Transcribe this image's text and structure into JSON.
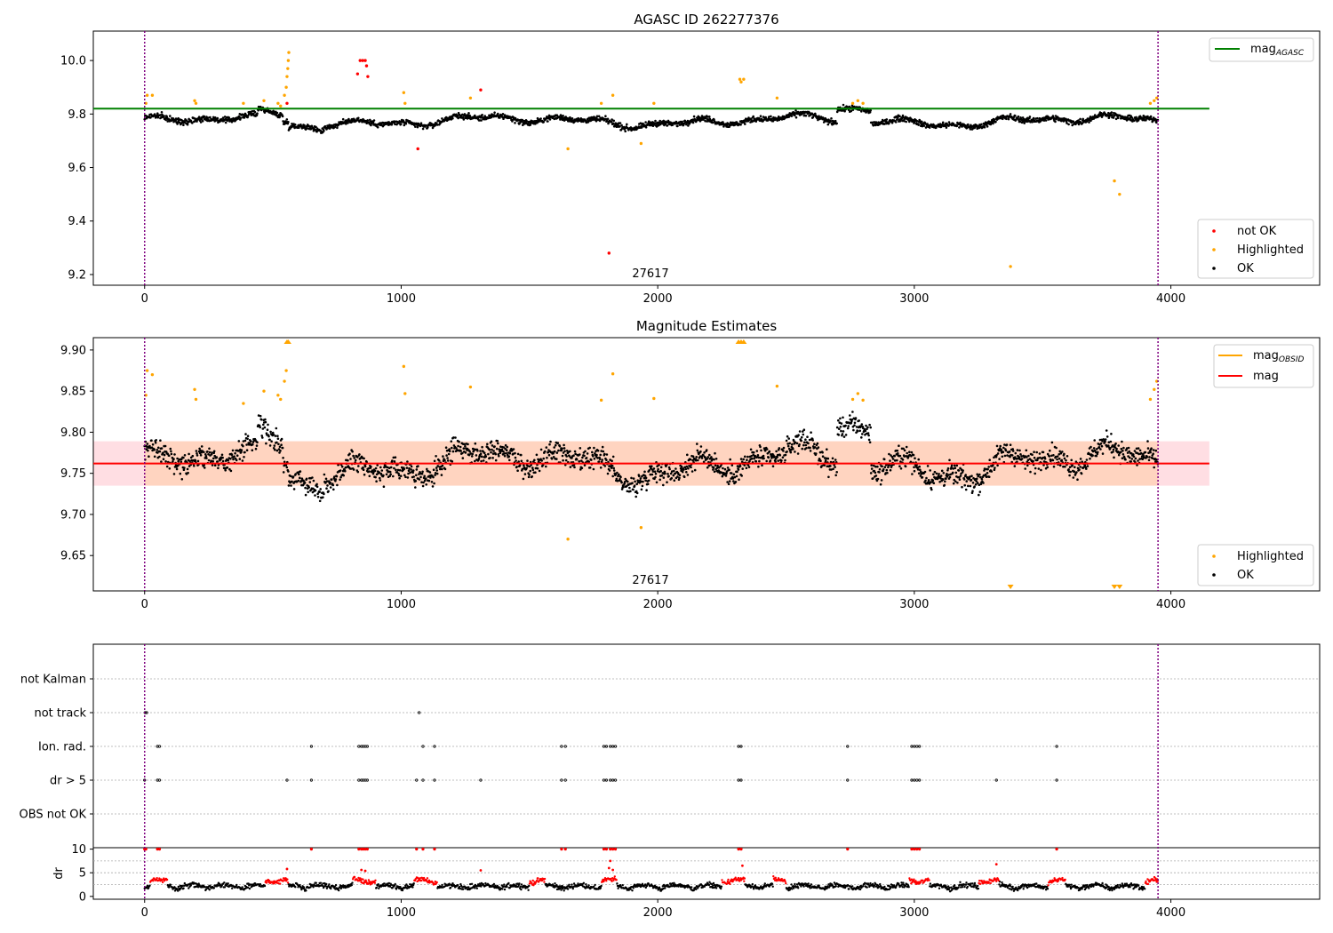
{
  "colors": {
    "ok": "#000000",
    "highlighted": "#ffa500",
    "not_ok": "#ff0000",
    "agasc": "#008000",
    "mag": "#ff0000",
    "obsid": "#ffa500",
    "vline": "#800080",
    "band_pink": "#ffb6c1",
    "band_orange": "#ffd0b0"
  },
  "chart_data": [
    {
      "type": "scatter",
      "title": "AGASC ID 262277376",
      "annotation": "27617",
      "xlim": [
        -200,
        4580
      ],
      "ylim": [
        9.16,
        10.11
      ],
      "xticks": [
        "0",
        "1000",
        "2000",
        "3000",
        "4000"
      ],
      "xtick_values": [
        0,
        1000,
        2000,
        3000,
        4000
      ],
      "yticks": [
        "9.2",
        "9.4",
        "9.6",
        "9.8",
        "10.0"
      ],
      "ytick_values": [
        9.2,
        9.4,
        9.6,
        9.8,
        10.0
      ],
      "vlines": [
        0,
        3950
      ],
      "hline": {
        "name": "mag",
        "subscript": "AGASC",
        "value": 9.82,
        "x": [
          -200,
          4150
        ]
      },
      "legend_top": {
        "name": "mag",
        "subscript": "AGASC"
      },
      "legend_bottom": [
        "not OK",
        "Highlighted",
        "OK"
      ],
      "highlighted_points": [
        [
          10,
          9.87
        ],
        [
          30,
          9.87
        ],
        [
          5,
          9.84
        ],
        [
          195,
          9.85
        ],
        [
          200,
          9.84
        ],
        [
          385,
          9.84
        ],
        [
          465,
          9.85
        ],
        [
          520,
          9.84
        ],
        [
          530,
          9.83
        ],
        [
          545,
          9.87
        ],
        [
          552,
          9.9
        ],
        [
          555,
          9.94
        ],
        [
          558,
          9.97
        ],
        [
          560,
          10.0
        ],
        [
          562,
          10.03
        ],
        [
          1010,
          9.88
        ],
        [
          1015,
          9.84
        ],
        [
          1270,
          9.86
        ],
        [
          1650,
          9.67
        ],
        [
          1780,
          9.84
        ],
        [
          1825,
          9.87
        ],
        [
          1935,
          9.69
        ],
        [
          1985,
          9.84
        ],
        [
          2320,
          9.93
        ],
        [
          2325,
          9.92
        ],
        [
          2335,
          9.93
        ],
        [
          2465,
          9.86
        ],
        [
          2760,
          9.84
        ],
        [
          2780,
          9.85
        ],
        [
          2800,
          9.84
        ],
        [
          3375,
          9.23
        ],
        [
          3780,
          9.55
        ],
        [
          3800,
          9.5
        ],
        [
          3920,
          9.84
        ],
        [
          3935,
          9.85
        ],
        [
          3945,
          9.86
        ]
      ],
      "not_ok_points": [
        [
          830,
          9.95
        ],
        [
          840,
          10.0
        ],
        [
          850,
          10.0
        ],
        [
          860,
          10.0
        ],
        [
          865,
          9.98
        ],
        [
          870,
          9.94
        ],
        [
          1065,
          9.67
        ],
        [
          1310,
          9.89
        ],
        [
          1810,
          9.28
        ],
        [
          555,
          9.84
        ]
      ]
    },
    {
      "type": "scatter",
      "title": "Magnitude Estimates",
      "annotation": "27617",
      "xlim": [
        -200,
        4580
      ],
      "ylim": [
        9.607,
        9.915
      ],
      "xticks": [
        "0",
        "1000",
        "2000",
        "3000",
        "4000"
      ],
      "xtick_values": [
        0,
        1000,
        2000,
        3000,
        4000
      ],
      "yticks": [
        "9.65",
        "9.70",
        "9.75",
        "9.80",
        "9.85",
        "9.90"
      ],
      "ytick_values": [
        9.65,
        9.7,
        9.75,
        9.8,
        9.85,
        9.9
      ],
      "vlines": [
        0,
        3950
      ],
      "mag_line": {
        "name": "mag",
        "value": 9.762,
        "band": [
          9.735,
          9.789
        ],
        "x": [
          -200,
          4150
        ]
      },
      "legend_top": [
        {
          "name": "mag",
          "subscript": "OBSID"
        },
        {
          "name": "mag"
        }
      ],
      "legend_bottom": [
        "Highlighted",
        "OK"
      ],
      "highlighted_points": [
        [
          10,
          9.875
        ],
        [
          30,
          9.87
        ],
        [
          5,
          9.845
        ],
        [
          195,
          9.852
        ],
        [
          200,
          9.84
        ],
        [
          385,
          9.835
        ],
        [
          465,
          9.85
        ],
        [
          520,
          9.845
        ],
        [
          530,
          9.84
        ],
        [
          545,
          9.862
        ],
        [
          552,
          9.875
        ],
        [
          1010,
          9.88
        ],
        [
          1015,
          9.847
        ],
        [
          1270,
          9.855
        ],
        [
          1650,
          9.67
        ],
        [
          1780,
          9.839
        ],
        [
          1825,
          9.871
        ],
        [
          1935,
          9.684
        ],
        [
          1985,
          9.841
        ],
        [
          2465,
          9.856
        ],
        [
          2760,
          9.84
        ],
        [
          2780,
          9.847
        ],
        [
          2800,
          9.839
        ],
        [
          3920,
          9.84
        ],
        [
          3935,
          9.852
        ],
        [
          3945,
          9.862
        ]
      ],
      "overflow_top": [
        555,
        560,
        2315,
        2325,
        2335
      ],
      "overflow_bottom": [
        3375,
        3780,
        3800
      ]
    },
    {
      "type": "scatter",
      "xlim": [
        -200,
        4580
      ],
      "category_labels": [
        "not Kalman",
        "not track",
        "Ion. rad.",
        "dr > 5",
        "OBS not OK"
      ],
      "flags": {
        "not track": [
          2,
          8,
          1070
        ],
        "Ion. rad.": [
          50,
          58,
          650,
          835,
          845,
          852,
          860,
          868,
          1085,
          1130,
          1625,
          1640,
          1790,
          1800,
          1815,
          1825,
          1835,
          2315,
          2325,
          2740,
          2990,
          3000,
          3010,
          3020,
          3555
        ],
        "dr > 5": [
          0,
          50,
          58,
          555,
          650,
          835,
          845,
          852,
          860,
          868,
          1060,
          1085,
          1130,
          1310,
          1625,
          1640,
          1790,
          1800,
          1815,
          1825,
          1835,
          2315,
          2325,
          2740,
          2990,
          3000,
          3010,
          3020,
          3320,
          3555
        ]
      },
      "xticks": [
        "0",
        "1000",
        "2000",
        "3000",
        "4000"
      ],
      "xtick_values": [
        0,
        1000,
        2000,
        3000,
        4000
      ]
    },
    {
      "type": "scatter",
      "ylabel": "dr",
      "xlim": [
        -200,
        4580
      ],
      "ylim": [
        -0.6,
        10.3
      ],
      "yticks": [
        "0",
        "5",
        "10"
      ],
      "ytick_values": [
        0,
        5,
        10
      ],
      "xticks": [
        "0",
        "1000",
        "2000",
        "3000",
        "4000"
      ],
      "xtick_values": [
        0,
        1000,
        2000,
        3000,
        4000
      ],
      "red_top": [
        0,
        5,
        50,
        58,
        650,
        835,
        845,
        852,
        860,
        868,
        1060,
        1085,
        1130,
        1625,
        1640,
        1790,
        1800,
        1815,
        1825,
        1835,
        2315,
        2325,
        2740,
        2990,
        3000,
        3010,
        3020,
        3555
      ],
      "red_spikes": [
        [
          555,
          5.8
        ],
        [
          845,
          5.6
        ],
        [
          860,
          5.4
        ],
        [
          1310,
          5.5
        ],
        [
          1810,
          6.0
        ],
        [
          1815,
          7.5
        ],
        [
          1825,
          5.6
        ],
        [
          2330,
          6.5
        ],
        [
          3320,
          6.8
        ]
      ],
      "red_segments": [
        [
          20,
          90
        ],
        [
          470,
          560
        ],
        [
          810,
          900
        ],
        [
          1050,
          1140
        ],
        [
          1500,
          1560
        ],
        [
          1780,
          1840
        ],
        [
          2250,
          2340
        ],
        [
          2450,
          2500
        ],
        [
          2980,
          3060
        ],
        [
          3250,
          3330
        ],
        [
          3520,
          3590
        ],
        [
          3900,
          3950
        ]
      ]
    }
  ]
}
